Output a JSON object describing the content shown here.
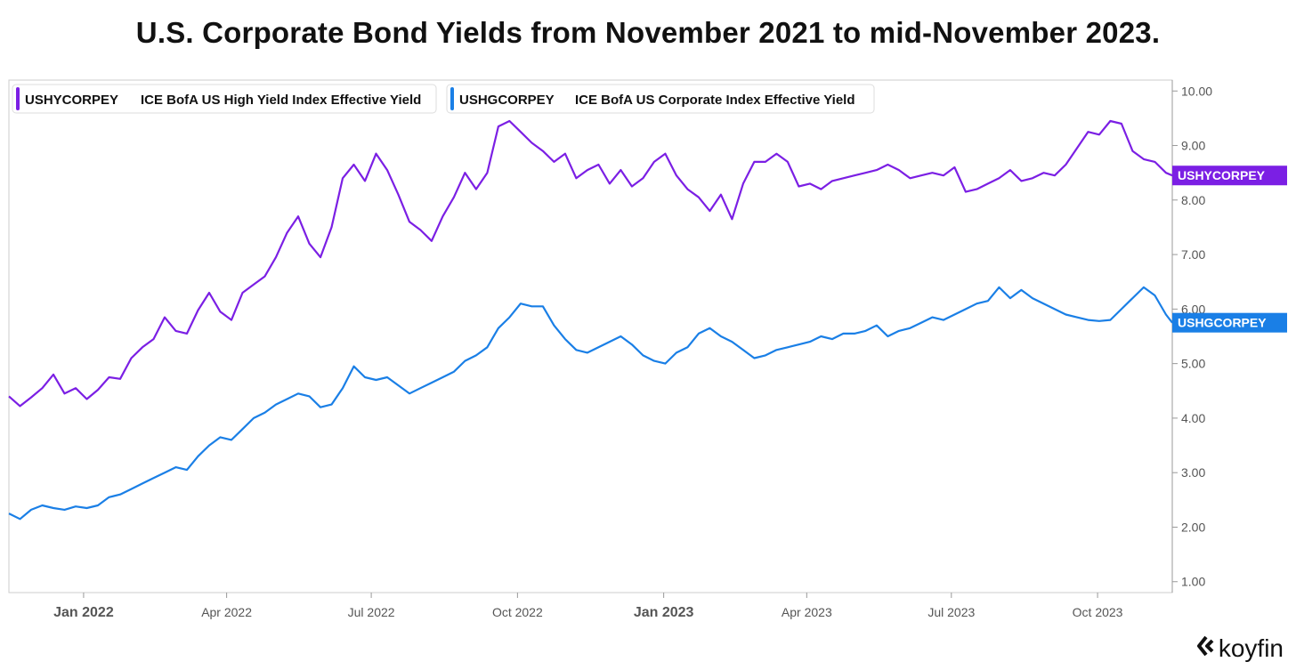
{
  "page": {
    "title": "U.S. Corporate Bond Yields from November 2021 to mid-November 2023."
  },
  "brand": {
    "name": "koyfin",
    "icon": "koyfin-logo-icon"
  },
  "chart_data": {
    "type": "line",
    "title": "U.S. Corporate Bond Yields from November 2021 to mid-November 2023.",
    "xlabel": "",
    "ylabel": "",
    "ylim": [
      0.8,
      10.2
    ],
    "y_ticks": [
      1.0,
      2.0,
      3.0,
      4.0,
      5.0,
      6.0,
      7.0,
      8.0,
      9.0,
      10.0
    ],
    "y_tick_labels": [
      "1.00",
      "2.00",
      "3.00",
      "4.00",
      "5.00",
      "6.00",
      "7.00",
      "8.00",
      "9.00",
      "10.00"
    ],
    "x_range": [
      "2021-11-15",
      "2023-11-17"
    ],
    "x_ticks": [
      {
        "date": "2022-01-01",
        "label": "Jan 2022",
        "major": true
      },
      {
        "date": "2022-04-01",
        "label": "Apr 2022",
        "major": false
      },
      {
        "date": "2022-07-01",
        "label": "Jul 2022",
        "major": false
      },
      {
        "date": "2022-10-01",
        "label": "Oct 2022",
        "major": false
      },
      {
        "date": "2023-01-01",
        "label": "Jan 2023",
        "major": true
      },
      {
        "date": "2023-04-01",
        "label": "Apr 2023",
        "major": false
      },
      {
        "date": "2023-07-01",
        "label": "Jul 2023",
        "major": false
      },
      {
        "date": "2023-10-01",
        "label": "Oct 2023",
        "major": false
      }
    ],
    "grid": false,
    "legend_position": "top-left",
    "series": [
      {
        "name": "USHYCORPEY",
        "description": "ICE BofA US High Yield Index Effective Yield",
        "color": "#7B1FE4",
        "last_label": "USHYCORPEY",
        "x": [
          "2021-11-15",
          "2021-11-22",
          "2021-11-29",
          "2021-12-06",
          "2021-12-13",
          "2021-12-20",
          "2021-12-27",
          "2022-01-03",
          "2022-01-10",
          "2022-01-17",
          "2022-01-24",
          "2022-01-31",
          "2022-02-07",
          "2022-02-14",
          "2022-02-21",
          "2022-02-28",
          "2022-03-07",
          "2022-03-14",
          "2022-03-21",
          "2022-03-28",
          "2022-04-04",
          "2022-04-11",
          "2022-04-18",
          "2022-04-25",
          "2022-05-02",
          "2022-05-09",
          "2022-05-16",
          "2022-05-23",
          "2022-05-30",
          "2022-06-06",
          "2022-06-13",
          "2022-06-20",
          "2022-06-27",
          "2022-07-04",
          "2022-07-11",
          "2022-07-18",
          "2022-07-25",
          "2022-08-01",
          "2022-08-08",
          "2022-08-15",
          "2022-08-22",
          "2022-08-29",
          "2022-09-05",
          "2022-09-12",
          "2022-09-19",
          "2022-09-26",
          "2022-10-03",
          "2022-10-10",
          "2022-10-17",
          "2022-10-24",
          "2022-10-31",
          "2022-11-07",
          "2022-11-14",
          "2022-11-21",
          "2022-11-28",
          "2022-12-05",
          "2022-12-12",
          "2022-12-19",
          "2022-12-26",
          "2023-01-02",
          "2023-01-09",
          "2023-01-16",
          "2023-01-23",
          "2023-01-30",
          "2023-02-06",
          "2023-02-13",
          "2023-02-20",
          "2023-02-27",
          "2023-03-06",
          "2023-03-13",
          "2023-03-20",
          "2023-03-27",
          "2023-04-03",
          "2023-04-10",
          "2023-04-17",
          "2023-04-24",
          "2023-05-01",
          "2023-05-08",
          "2023-05-15",
          "2023-05-22",
          "2023-05-29",
          "2023-06-05",
          "2023-06-12",
          "2023-06-19",
          "2023-06-26",
          "2023-07-03",
          "2023-07-10",
          "2023-07-17",
          "2023-07-24",
          "2023-07-31",
          "2023-08-07",
          "2023-08-14",
          "2023-08-21",
          "2023-08-28",
          "2023-09-04",
          "2023-09-11",
          "2023-09-18",
          "2023-09-25",
          "2023-10-02",
          "2023-10-09",
          "2023-10-16",
          "2023-10-23",
          "2023-10-30",
          "2023-11-06",
          "2023-11-13",
          "2023-11-17"
        ],
        "values": [
          4.4,
          4.22,
          4.38,
          4.55,
          4.8,
          4.45,
          4.55,
          4.35,
          4.52,
          4.75,
          4.72,
          5.1,
          5.3,
          5.45,
          5.85,
          5.6,
          5.55,
          5.98,
          6.3,
          5.95,
          5.8,
          6.3,
          6.45,
          6.6,
          6.95,
          7.4,
          7.7,
          7.2,
          6.95,
          7.5,
          8.4,
          8.65,
          8.35,
          8.85,
          8.55,
          8.1,
          7.6,
          7.45,
          7.25,
          7.7,
          8.05,
          8.5,
          8.2,
          8.5,
          9.35,
          9.45,
          9.25,
          9.05,
          8.9,
          8.7,
          8.85,
          8.4,
          8.55,
          8.65,
          8.3,
          8.55,
          8.25,
          8.4,
          8.7,
          8.85,
          8.45,
          8.2,
          8.05,
          7.8,
          8.1,
          7.65,
          8.3,
          8.7,
          8.7,
          8.85,
          8.7,
          8.25,
          8.3,
          8.2,
          8.35,
          8.4,
          8.45,
          8.5,
          8.55,
          8.65,
          8.55,
          8.4,
          8.45,
          8.5,
          8.45,
          8.6,
          8.15,
          8.2,
          8.3,
          8.4,
          8.55,
          8.35,
          8.4,
          8.5,
          8.45,
          8.65,
          8.95,
          9.25,
          9.2,
          9.45,
          9.4,
          8.9,
          8.75,
          8.7,
          8.5,
          8.45
        ]
      },
      {
        "name": "USHGCORPEY",
        "description": "ICE BofA US Corporate Index Effective Yield",
        "color": "#1A7FE6",
        "last_label": "USHGCORPEY",
        "x": [
          "2021-11-15",
          "2021-11-22",
          "2021-11-29",
          "2021-12-06",
          "2021-12-13",
          "2021-12-20",
          "2021-12-27",
          "2022-01-03",
          "2022-01-10",
          "2022-01-17",
          "2022-01-24",
          "2022-01-31",
          "2022-02-07",
          "2022-02-14",
          "2022-02-21",
          "2022-02-28",
          "2022-03-07",
          "2022-03-14",
          "2022-03-21",
          "2022-03-28",
          "2022-04-04",
          "2022-04-11",
          "2022-04-18",
          "2022-04-25",
          "2022-05-02",
          "2022-05-09",
          "2022-05-16",
          "2022-05-23",
          "2022-05-30",
          "2022-06-06",
          "2022-06-13",
          "2022-06-20",
          "2022-06-27",
          "2022-07-04",
          "2022-07-11",
          "2022-07-18",
          "2022-07-25",
          "2022-08-01",
          "2022-08-08",
          "2022-08-15",
          "2022-08-22",
          "2022-08-29",
          "2022-09-05",
          "2022-09-12",
          "2022-09-19",
          "2022-09-26",
          "2022-10-03",
          "2022-10-10",
          "2022-10-17",
          "2022-10-24",
          "2022-10-31",
          "2022-11-07",
          "2022-11-14",
          "2022-11-21",
          "2022-11-28",
          "2022-12-05",
          "2022-12-12",
          "2022-12-19",
          "2022-12-26",
          "2023-01-02",
          "2023-01-09",
          "2023-01-16",
          "2023-01-23",
          "2023-01-30",
          "2023-02-06",
          "2023-02-13",
          "2023-02-20",
          "2023-02-27",
          "2023-03-06",
          "2023-03-13",
          "2023-03-20",
          "2023-03-27",
          "2023-04-03",
          "2023-04-10",
          "2023-04-17",
          "2023-04-24",
          "2023-05-01",
          "2023-05-08",
          "2023-05-15",
          "2023-05-22",
          "2023-05-29",
          "2023-06-05",
          "2023-06-12",
          "2023-06-19",
          "2023-06-26",
          "2023-07-03",
          "2023-07-10",
          "2023-07-17",
          "2023-07-24",
          "2023-07-31",
          "2023-08-07",
          "2023-08-14",
          "2023-08-21",
          "2023-08-28",
          "2023-09-04",
          "2023-09-11",
          "2023-09-18",
          "2023-09-25",
          "2023-10-02",
          "2023-10-09",
          "2023-10-16",
          "2023-10-23",
          "2023-10-30",
          "2023-11-06",
          "2023-11-13",
          "2023-11-17"
        ],
        "values": [
          2.25,
          2.15,
          2.32,
          2.4,
          2.35,
          2.32,
          2.38,
          2.35,
          2.4,
          2.55,
          2.6,
          2.7,
          2.8,
          2.9,
          3.0,
          3.1,
          3.05,
          3.3,
          3.5,
          3.65,
          3.6,
          3.8,
          4.0,
          4.1,
          4.25,
          4.35,
          4.45,
          4.4,
          4.2,
          4.25,
          4.55,
          4.95,
          4.75,
          4.7,
          4.75,
          4.6,
          4.45,
          4.55,
          4.65,
          4.75,
          4.85,
          5.05,
          5.15,
          5.3,
          5.65,
          5.85,
          6.1,
          6.05,
          6.05,
          5.7,
          5.45,
          5.25,
          5.2,
          5.3,
          5.4,
          5.5,
          5.35,
          5.15,
          5.05,
          5.0,
          5.2,
          5.3,
          5.55,
          5.65,
          5.5,
          5.4,
          5.25,
          5.1,
          5.15,
          5.25,
          5.3,
          5.35,
          5.4,
          5.5,
          5.45,
          5.55,
          5.55,
          5.6,
          5.7,
          5.5,
          5.6,
          5.65,
          5.75,
          5.85,
          5.8,
          5.9,
          6.0,
          6.1,
          6.15,
          6.4,
          6.2,
          6.35,
          6.2,
          6.1,
          6.0,
          5.9,
          5.85,
          5.8,
          5.78,
          5.8,
          6.0,
          6.2,
          6.4,
          6.25,
          5.9,
          5.75
        ]
      }
    ]
  }
}
